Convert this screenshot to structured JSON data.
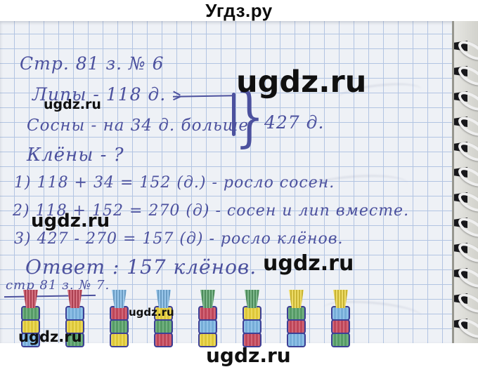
{
  "header": {
    "site_title": "Угдз.ру"
  },
  "watermark": {
    "text": "ugdz.ru"
  },
  "task6": {
    "title": "Стр. 81 з. № 6",
    "line_lipy": "Липы - 118 д.",
    "line_sosny": "Сосны - на 34 д. больше",
    "line_kleny": "Клёны - ?",
    "total": "427 д.",
    "steps": [
      "1) 118 + 34 = 152 (д.) - росло сосен.",
      "2) 118 + 152 = 270 (д) - сосен и лип вместе.",
      "3) 427 - 270 = 157 (д) - росло клёнов."
    ],
    "answer": "Ответ : 157 клёнов."
  },
  "task7": {
    "title": "стр 81 з. № 7.",
    "palette": {
      "red": "#c84a5e",
      "yellow": "#e9d23c",
      "blue": "#7cb6e4",
      "green": "#5aa36b"
    },
    "towers": [
      {
        "cap": "red",
        "blocks": [
          "green",
          "yellow",
          "blue"
        ]
      },
      {
        "cap": "red",
        "blocks": [
          "blue",
          "yellow",
          "green"
        ]
      },
      {
        "cap": "blue",
        "blocks": [
          "red",
          "green",
          "yellow"
        ]
      },
      {
        "cap": "blue",
        "blocks": [
          "yellow",
          "green",
          "red"
        ]
      },
      {
        "cap": "green",
        "blocks": [
          "red",
          "blue",
          "yellow"
        ]
      },
      {
        "cap": "green",
        "blocks": [
          "yellow",
          "blue",
          "red"
        ]
      },
      {
        "cap": "yellow",
        "blocks": [
          "green",
          "red",
          "blue"
        ]
      },
      {
        "cap": "yellow",
        "blocks": [
          "blue",
          "red",
          "green"
        ]
      }
    ]
  },
  "colors": {
    "ink": "#4c519e",
    "watermark": "#101010",
    "grid_line": "#b2c4e2",
    "paper": "#eef1f6"
  }
}
